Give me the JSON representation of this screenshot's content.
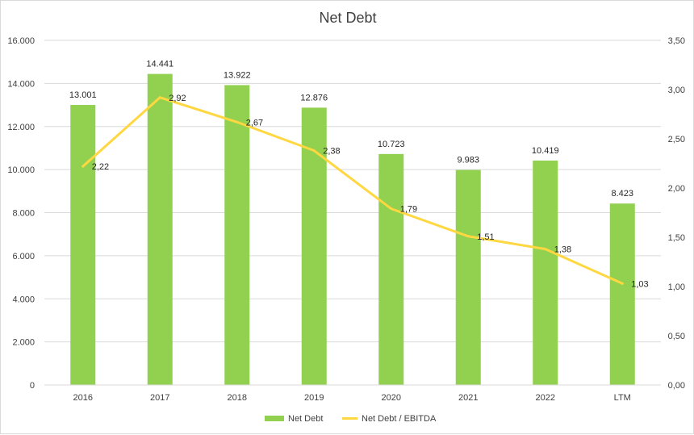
{
  "chart_data": {
    "type": "bar",
    "title": "Net Debt",
    "categories": [
      "2016",
      "2017",
      "2018",
      "2019",
      "2020",
      "2021",
      "2022",
      "LTM"
    ],
    "series": [
      {
        "name": "Net Debt",
        "kind": "bar",
        "axis": "left",
        "color": "#92d050",
        "values": [
          13001,
          14441,
          13922,
          12876,
          10723,
          9983,
          10419,
          8423
        ],
        "labels": [
          "13.001",
          "14.441",
          "13.922",
          "12.876",
          "10.723",
          "9.983",
          "10.419",
          "8.423"
        ]
      },
      {
        "name": "Net Debt / EBITDA",
        "kind": "line",
        "axis": "right",
        "color": "#ffd740",
        "values": [
          2.22,
          2.92,
          2.67,
          2.38,
          1.79,
          1.51,
          1.38,
          1.03
        ],
        "labels": [
          "2,22",
          "2,92",
          "2,67",
          "2,38",
          "1,79",
          "1,51",
          "1,38",
          "1,03"
        ]
      }
    ],
    "y_left": {
      "min": 0,
      "max": 16000,
      "ticks": [
        0,
        2000,
        4000,
        6000,
        8000,
        10000,
        12000,
        14000,
        16000
      ],
      "tick_labels": [
        "0",
        "2.000",
        "4.000",
        "6.000",
        "8.000",
        "10.000",
        "12.000",
        "14.000",
        "16.000"
      ]
    },
    "y_right": {
      "min": 0,
      "max": 3.5,
      "ticks": [
        0,
        0.5,
        1,
        1.5,
        2,
        2.5,
        3,
        3.5
      ],
      "tick_labels": [
        "0,00",
        "0,50",
        "1,00",
        "1,50",
        "2,00",
        "2,50",
        "3,00",
        "3,50"
      ]
    },
    "grid": true,
    "legend": "bottom-center"
  }
}
